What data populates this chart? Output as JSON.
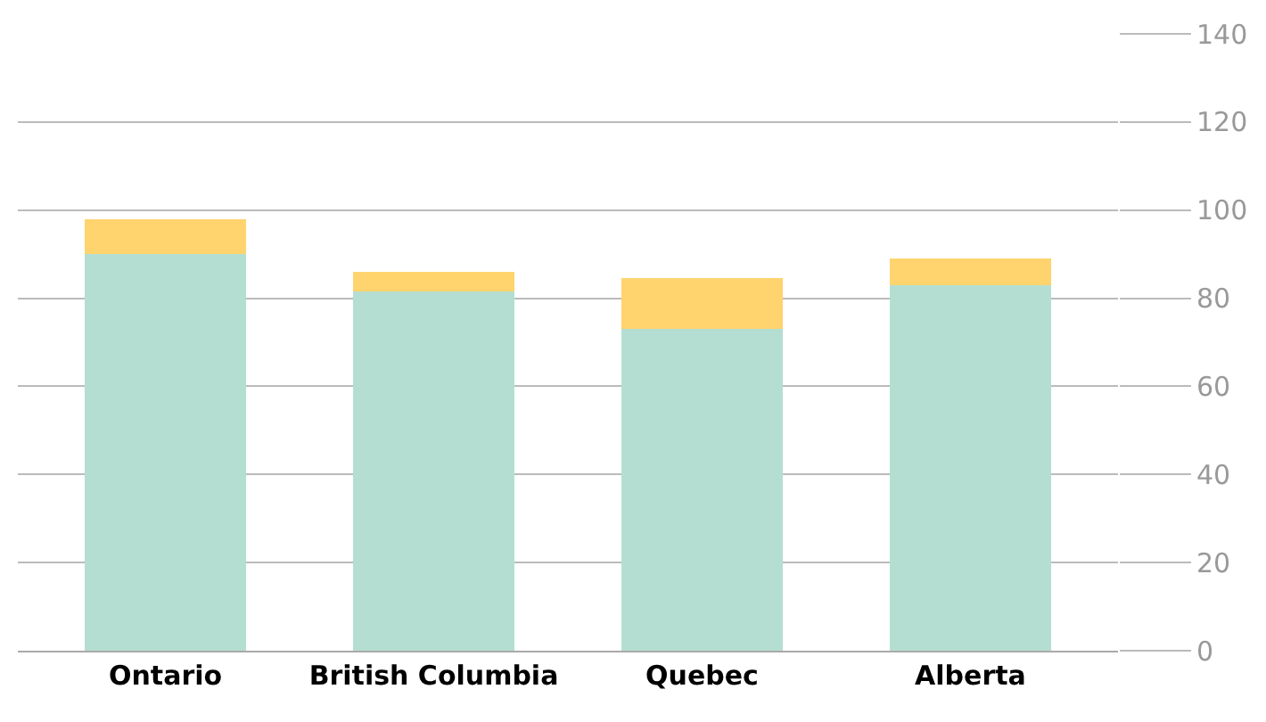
{
  "chart_data": {
    "type": "bar",
    "stacked": true,
    "categories": [
      "Ontario",
      "British Columbia",
      "Quebec",
      "Alberta"
    ],
    "series": [
      {
        "color": "#b5ded2",
        "values": [
          90,
          81.5,
          73,
          83
        ]
      },
      {
        "color": "#ffd36e",
        "values": [
          8,
          4.5,
          11.5,
          6
        ]
      }
    ],
    "ylim": [
      0,
      140
    ],
    "yticks": [
      0,
      20,
      40,
      60,
      80,
      100,
      120,
      140
    ],
    "grid": "y"
  }
}
